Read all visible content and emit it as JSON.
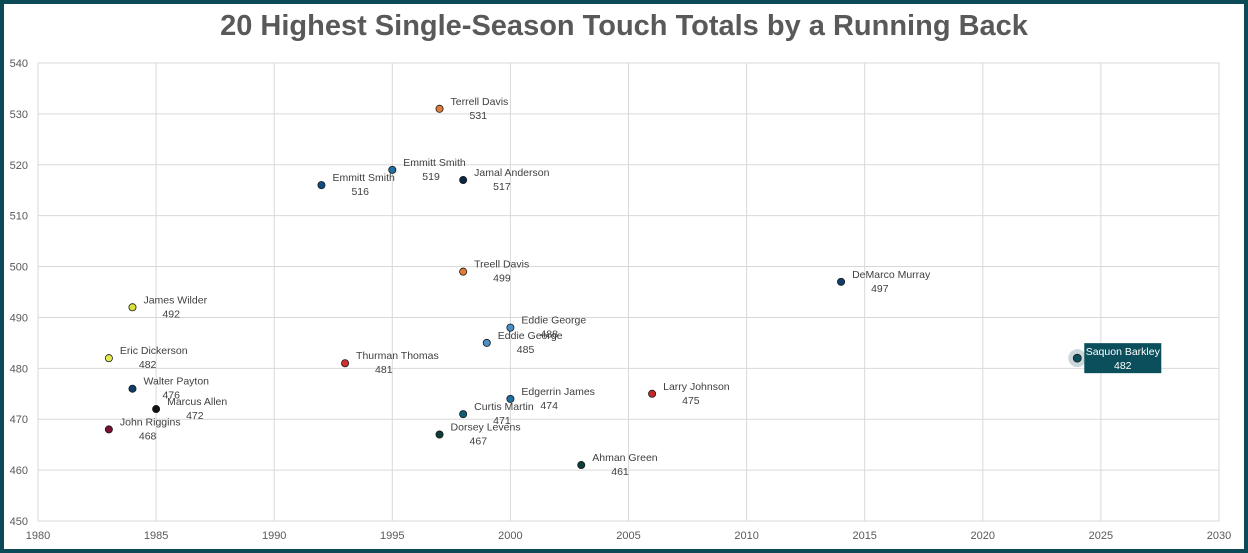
{
  "chart_data": {
    "type": "scatter",
    "title": "20 Highest Single-Season Touch Totals by a Running Back",
    "xlabel": "",
    "ylabel": "",
    "xlim": [
      1980,
      2030
    ],
    "ylim": [
      450,
      540
    ],
    "xticks": [
      1980,
      1985,
      1990,
      1995,
      2000,
      2005,
      2010,
      2015,
      2020,
      2025,
      2030
    ],
    "yticks": [
      450,
      460,
      470,
      480,
      490,
      500,
      510,
      520,
      530,
      540
    ],
    "grid": true,
    "points": [
      {
        "x": 1997,
        "y": 531,
        "label": "Terrell Davis",
        "value": "531",
        "color": "#e07b39"
      },
      {
        "x": 1995,
        "y": 519,
        "label": "Emmitt Smith",
        "value": "519",
        "color": "#1f6fa3"
      },
      {
        "x": 1998,
        "y": 517,
        "label": "Jamal Anderson",
        "value": "517",
        "color": "#0b2545"
      },
      {
        "x": 1992,
        "y": 516,
        "label": "Emmitt Smith",
        "value": "516",
        "color": "#0f4c81"
      },
      {
        "x": 1998,
        "y": 499,
        "label": "Treell Davis",
        "value": "499",
        "color": "#e07b39"
      },
      {
        "x": 2014,
        "y": 497,
        "label": "DeMarco Murray",
        "value": "497",
        "color": "#0f3d6e"
      },
      {
        "x": 1984,
        "y": 492,
        "label": "James Wilder",
        "value": "492",
        "color": "#d7e43c"
      },
      {
        "x": 2000,
        "y": 488,
        "label": "Eddie George",
        "value": "488",
        "color": "#4a90c8"
      },
      {
        "x": 1999,
        "y": 485,
        "label": "Eddie George",
        "value": "485",
        "color": "#4a90c8"
      },
      {
        "x": 1983,
        "y": 482,
        "label": "Eric Dickerson",
        "value": "482",
        "color": "#e2ea4e"
      },
      {
        "x": 2024,
        "y": 482,
        "label": "Saquon Barkley",
        "value": "482",
        "color": "#0b4f5c",
        "highlight": true
      },
      {
        "x": 1993,
        "y": 481,
        "label": "Thurman Thomas",
        "value": "481",
        "color": "#d32f2f"
      },
      {
        "x": 1984,
        "y": 476,
        "label": "Walter Payton",
        "value": "476",
        "color": "#0f3d6e"
      },
      {
        "x": 2006,
        "y": 475,
        "label": "Larry Johnson",
        "value": "475",
        "color": "#c62828"
      },
      {
        "x": 2000,
        "y": 474,
        "label": "Edgerrin James",
        "value": "474",
        "color": "#1f6fa3"
      },
      {
        "x": 1985,
        "y": 472,
        "label": "Marcus Allen",
        "value": "472",
        "color": "#111111"
      },
      {
        "x": 1998,
        "y": 471,
        "label": "Curtis Martin",
        "value": "471",
        "color": "#0b5d73"
      },
      {
        "x": 1983,
        "y": 468,
        "label": "John Riggins",
        "value": "468",
        "color": "#7a1030"
      },
      {
        "x": 1997,
        "y": 467,
        "label": "Dorsey Levens",
        "value": "467",
        "color": "#0b3d3a"
      },
      {
        "x": 2003,
        "y": 461,
        "label": "Ahman Green",
        "value": "461",
        "color": "#0b3d3a"
      }
    ]
  }
}
